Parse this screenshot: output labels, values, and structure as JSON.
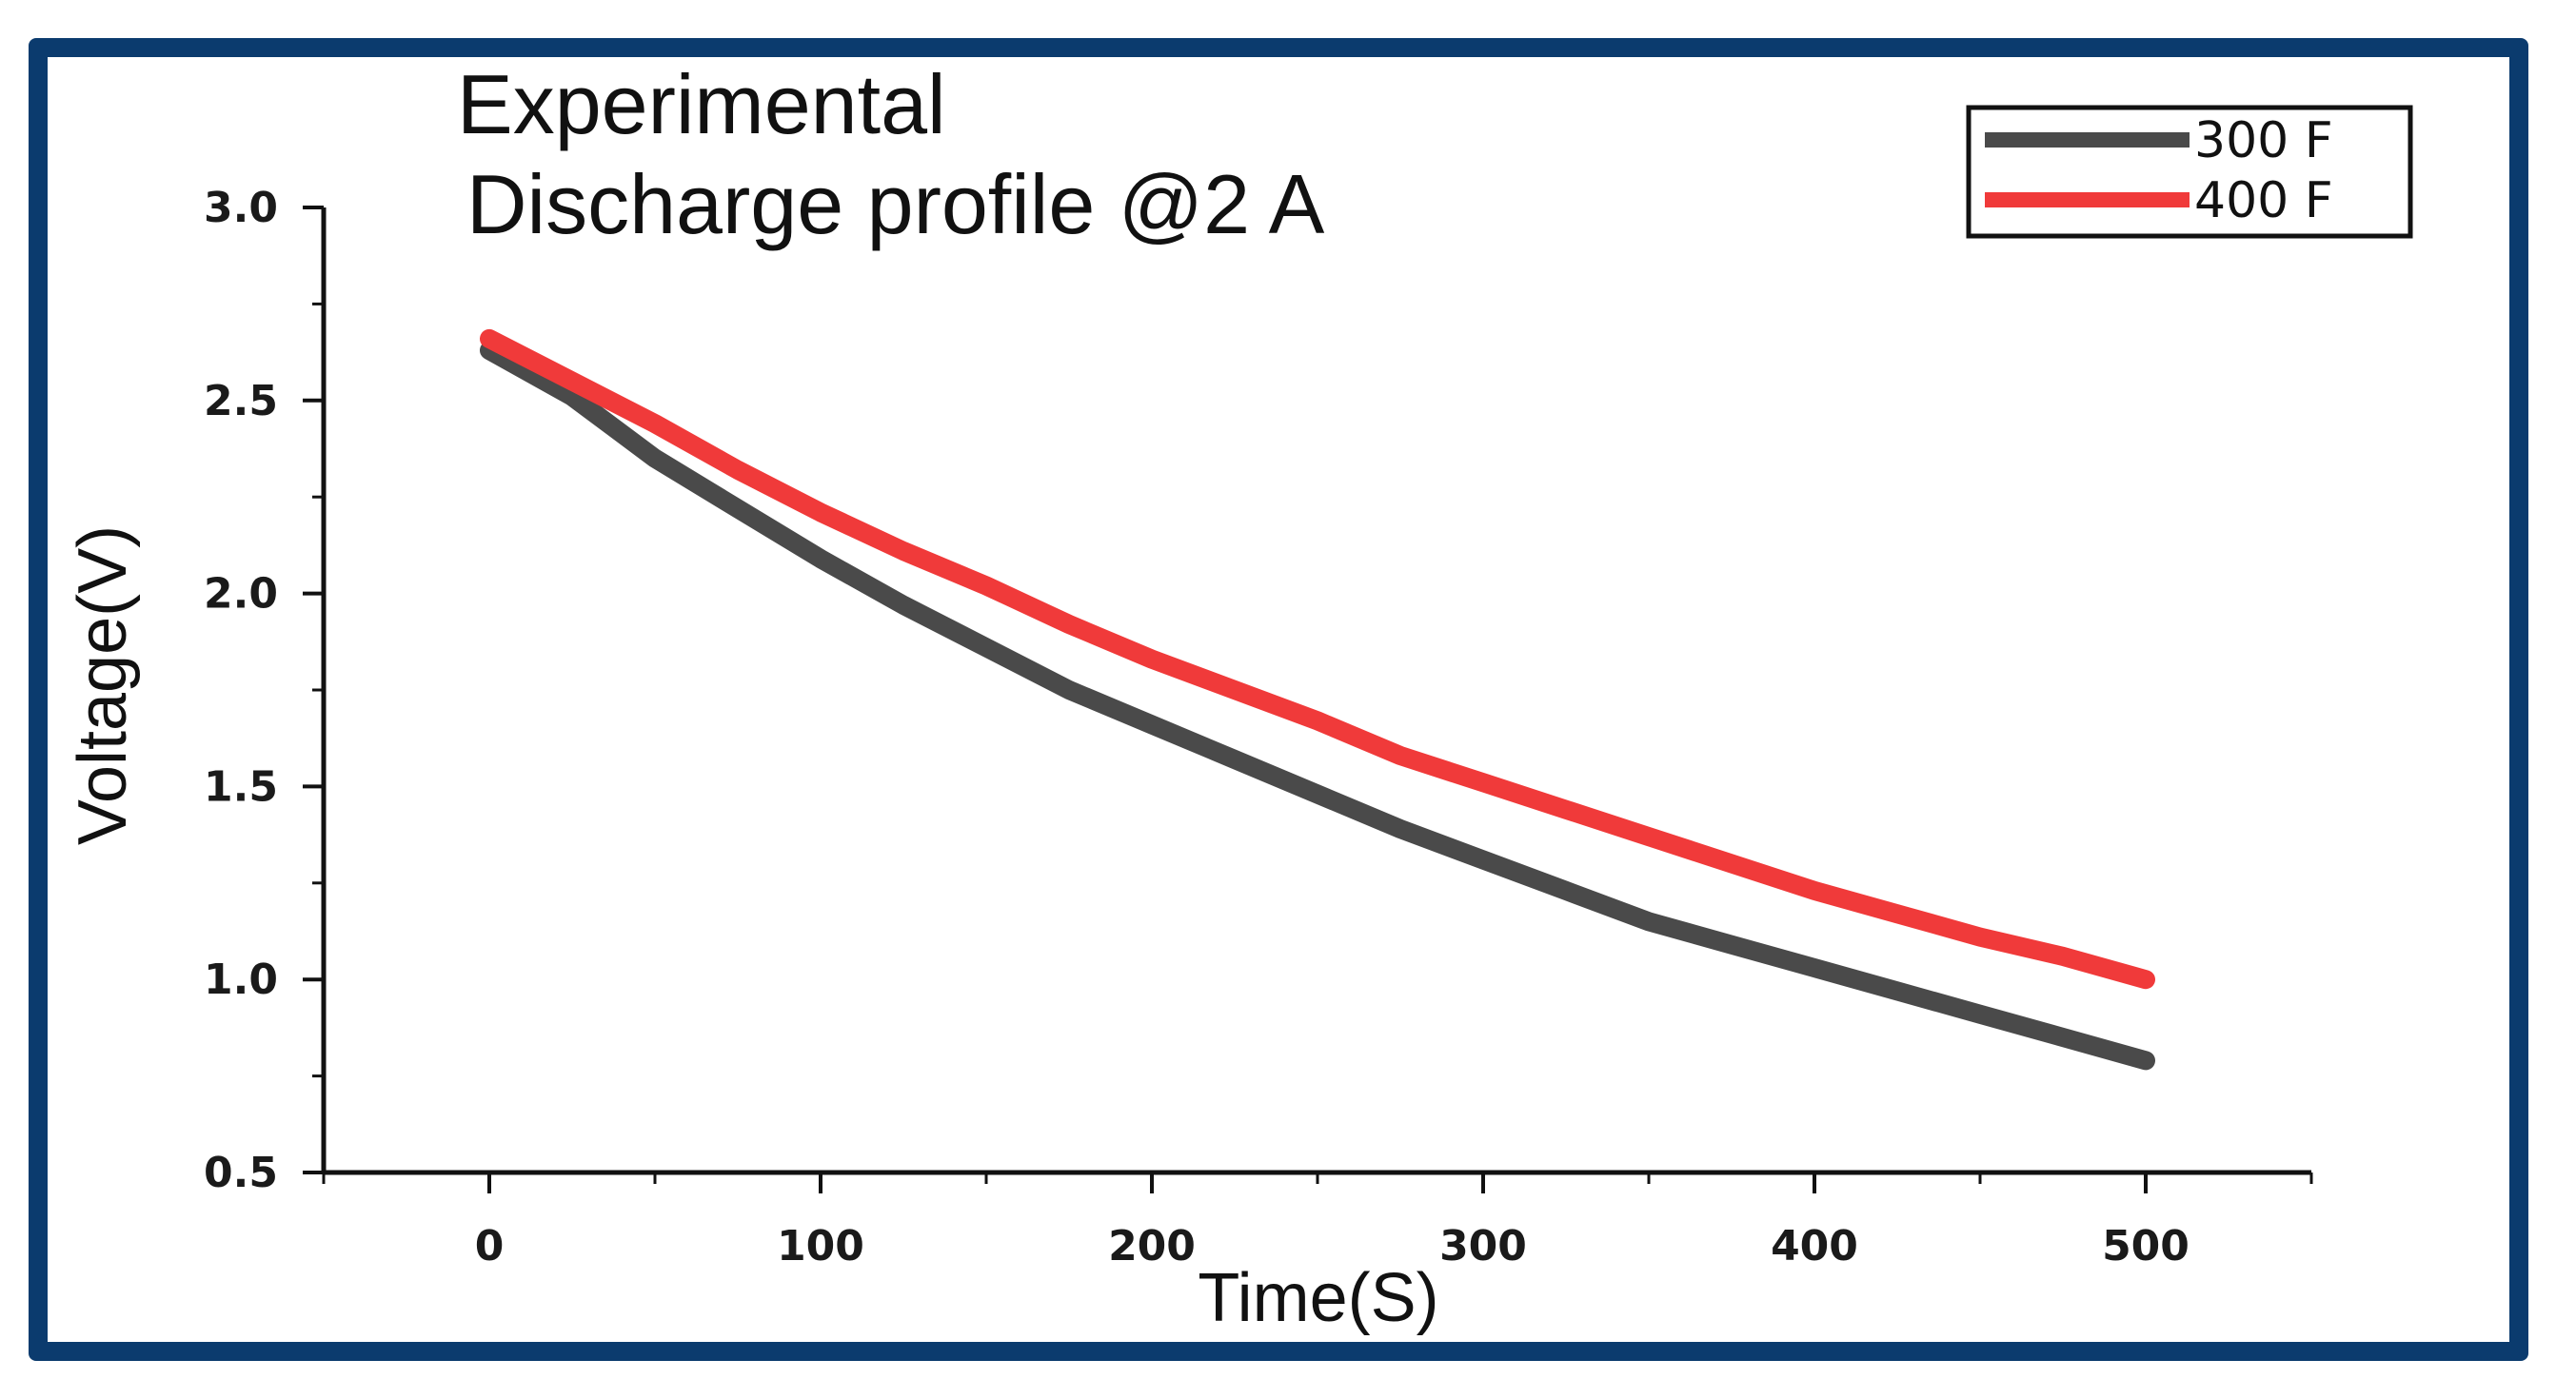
{
  "chart_data": {
    "type": "line",
    "title_lines": [
      "Experimental",
      "Discharge profile @2 A"
    ],
    "xlabel": "Time(S)",
    "ylabel": "Voltage(V)",
    "xlim": [
      -50,
      550
    ],
    "ylim": [
      0.5,
      3.0
    ],
    "xticks": [
      0,
      100,
      200,
      300,
      400,
      500
    ],
    "xtick_labels": [
      "0",
      "100",
      "200",
      "300",
      "400",
      "500"
    ],
    "yticks": [
      0.5,
      1.0,
      1.5,
      2.0,
      2.5,
      3.0
    ],
    "ytick_labels": [
      "0.5",
      "1.0",
      "1.5",
      "2.0",
      "2.5",
      "3.0"
    ],
    "legend_position": "top-right",
    "series": [
      {
        "name": "300 F",
        "color": "#4a4a4a",
        "x": [
          0,
          25,
          50,
          75,
          100,
          125,
          150,
          175,
          200,
          225,
          250,
          275,
          300,
          325,
          350,
          375,
          400,
          425,
          450,
          475,
          500
        ],
        "values": [
          2.63,
          2.51,
          2.35,
          2.22,
          2.09,
          1.97,
          1.86,
          1.75,
          1.66,
          1.57,
          1.48,
          1.39,
          1.31,
          1.23,
          1.15,
          1.09,
          1.03,
          0.97,
          0.91,
          0.85,
          0.79
        ]
      },
      {
        "name": "400 F",
        "color": "#f03a3a",
        "x": [
          0,
          25,
          50,
          75,
          100,
          125,
          150,
          175,
          200,
          225,
          250,
          275,
          300,
          325,
          350,
          375,
          400,
          425,
          450,
          475,
          500
        ],
        "values": [
          2.66,
          2.55,
          2.44,
          2.32,
          2.21,
          2.11,
          2.02,
          1.92,
          1.83,
          1.75,
          1.67,
          1.58,
          1.51,
          1.44,
          1.37,
          1.3,
          1.23,
          1.17,
          1.11,
          1.06,
          1.0
        ]
      }
    ]
  }
}
